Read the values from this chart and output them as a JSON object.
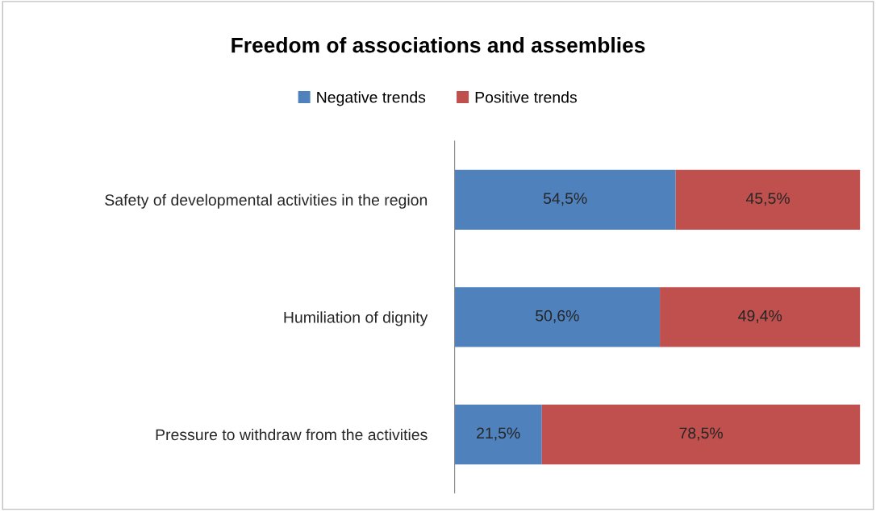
{
  "chart_data": {
    "type": "bar",
    "orientation": "horizontal",
    "stacked": true,
    "title": "Freedom of associations and assemblies",
    "categories": [
      "Safety of developmental activities in the region",
      "Humiliation of dignity",
      "Pressure to withdraw from the activities"
    ],
    "series": [
      {
        "name": "Negative trends",
        "color": "#4f81bd",
        "values": [
          54.5,
          50.6,
          21.5
        ],
        "value_labels": [
          "54,5%",
          "50,6%",
          "21,5%"
        ]
      },
      {
        "name": "Positive trends",
        "color": "#c0504d",
        "values": [
          45.5,
          49.4,
          78.5
        ],
        "value_labels": [
          "45,5%",
          "49,4%",
          "78,5%"
        ]
      }
    ],
    "xlim": [
      0,
      100
    ],
    "tick_labels": "y",
    "grid": false,
    "legend": "top"
  }
}
